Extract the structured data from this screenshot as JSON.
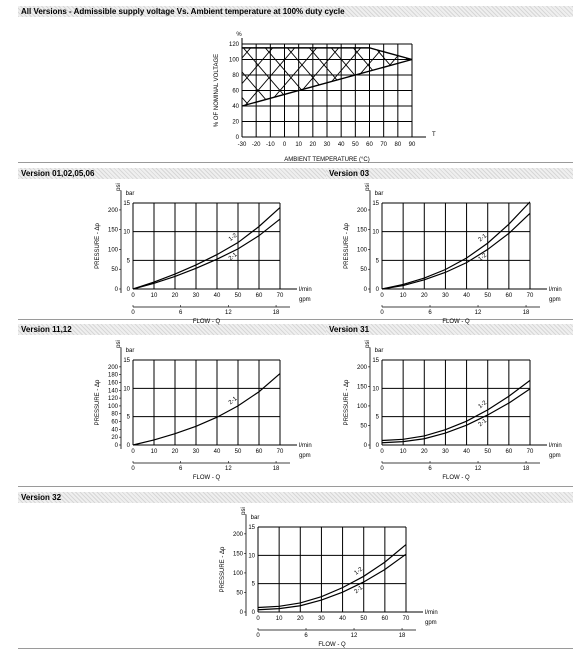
{
  "sections": {
    "top": "All Versions - Admissible supply voltage Vs. Ambient temperature at 100% duty cycle",
    "v01": "Version 01,02,05,06",
    "v03": "Version 03",
    "v11": "Version 11,12",
    "v31": "Version 31",
    "v32": "Version 32"
  },
  "chart_data": [
    {
      "id": "voltage_temp",
      "type": "area",
      "title": "",
      "xlabel": "AMBIENT TEMPERATURE (°C)",
      "ylabel": "% OF NOMINAL VOLTAGE",
      "y_unit": "%",
      "x_axis_symbol": "T",
      "xlim": [
        -30,
        90
      ],
      "ylim": [
        0,
        120
      ],
      "x_ticks": [
        "-30",
        "-20",
        "-10",
        "0",
        "10",
        "20",
        "30",
        "40",
        "50",
        "60",
        "70",
        "80",
        "90"
      ],
      "y_ticks": [
        "0",
        "20",
        "40",
        "60",
        "80",
        "100",
        "120"
      ],
      "series": [
        {
          "role": "upper limit",
          "x": [
            -30,
            60,
            90
          ],
          "y": [
            115,
            115,
            100
          ]
        },
        {
          "role": "lower limit",
          "x": [
            -30,
            90
          ],
          "y": [
            40,
            100
          ]
        }
      ]
    },
    {
      "id": "v01",
      "type": "line",
      "ylabel": "PRESSURE - Δp",
      "xlabel": "FLOW - Q",
      "y_unit_primary": "bar",
      "y_unit_secondary": "psi",
      "x_unit_primary": "l/min",
      "x_unit_secondary": "gpm",
      "xlim": [
        0,
        70
      ],
      "ylim": [
        0,
        15
      ],
      "x_ticks": [
        "0",
        "10",
        "20",
        "30",
        "40",
        "50",
        "60",
        "70"
      ],
      "y_ticks": [
        "0",
        "5",
        "10",
        "15"
      ],
      "psi_ticks": [
        "0",
        "50",
        "100",
        "150",
        "200"
      ],
      "gpm_ticks": [
        "0",
        "6",
        "12",
        "18"
      ],
      "series": [
        {
          "name": "1-2",
          "x": [
            0,
            10,
            20,
            30,
            40,
            50,
            60,
            70
          ],
          "y": [
            0,
            1.2,
            2.6,
            4.2,
            6.0,
            8.1,
            10.9,
            14.2
          ]
        },
        {
          "name": "2-1",
          "x": [
            0,
            10,
            20,
            30,
            40,
            50,
            60,
            70
          ],
          "y": [
            0,
            1.0,
            2.2,
            3.6,
            5.2,
            7.0,
            9.3,
            12.2
          ]
        }
      ]
    },
    {
      "id": "v03",
      "type": "line",
      "ylabel": "PRESSURE - Δp",
      "xlabel": "FLOW - Q",
      "y_unit_primary": "bar",
      "y_unit_secondary": "psi",
      "x_unit_primary": "l/min",
      "x_unit_secondary": "gpm",
      "xlim": [
        0,
        70
      ],
      "ylim": [
        0,
        15
      ],
      "x_ticks": [
        "0",
        "10",
        "20",
        "30",
        "40",
        "50",
        "60",
        "70"
      ],
      "y_ticks": [
        "0",
        "5",
        "10",
        "15"
      ],
      "psi_ticks": [
        "0",
        "50",
        "100",
        "150",
        "200"
      ],
      "gpm_ticks": [
        "0",
        "6",
        "12",
        "18"
      ],
      "series": [
        {
          "name": "2-1",
          "x": [
            0,
            10,
            20,
            30,
            40,
            50,
            60,
            70
          ],
          "y": [
            0,
            0.8,
            1.9,
            3.4,
            5.4,
            8.0,
            11.3,
            15.2
          ]
        },
        {
          "name": "1-2",
          "x": [
            0,
            10,
            20,
            30,
            40,
            50,
            60,
            70
          ],
          "y": [
            0,
            0.6,
            1.6,
            2.9,
            4.6,
            6.9,
            9.7,
            13.2
          ]
        }
      ]
    },
    {
      "id": "v11",
      "type": "line",
      "ylabel": "PRESSURE - Δp",
      "xlabel": "FLOW - Q",
      "y_unit_primary": "bar",
      "y_unit_secondary": "psi",
      "x_unit_primary": "l/min",
      "x_unit_secondary": "gpm",
      "xlim": [
        0,
        70
      ],
      "ylim": [
        0,
        15
      ],
      "x_ticks": [
        "0",
        "10",
        "20",
        "30",
        "40",
        "50",
        "60",
        "70"
      ],
      "y_ticks": [
        "0",
        "5",
        "10",
        "15"
      ],
      "psi_ticks": [
        "0",
        "20",
        "40",
        "60",
        "80",
        "100",
        "120",
        "140",
        "160",
        "180",
        "200"
      ],
      "gpm_ticks": [
        "0",
        "6",
        "12",
        "18"
      ],
      "series": [
        {
          "name": "2-1",
          "x": [
            0,
            10,
            20,
            30,
            40,
            50,
            60,
            70
          ],
          "y": [
            0,
            0.9,
            2.0,
            3.3,
            4.9,
            6.9,
            9.4,
            12.6
          ]
        }
      ]
    },
    {
      "id": "v31",
      "type": "line",
      "ylabel": "PRESSURE - Δp",
      "xlabel": "FLOW - Q",
      "y_unit_primary": "bar",
      "y_unit_secondary": "psi",
      "x_unit_primary": "l/min",
      "x_unit_secondary": "gpm",
      "xlim": [
        0,
        70
      ],
      "ylim": [
        0,
        15
      ],
      "x_ticks": [
        "0",
        "10",
        "20",
        "30",
        "40",
        "50",
        "60",
        "70"
      ],
      "y_ticks": [
        "0",
        "5",
        "10",
        "15"
      ],
      "psi_ticks": [
        "0",
        "50",
        "100",
        "150",
        "200"
      ],
      "gpm_ticks": [
        "0",
        "6",
        "12",
        "18"
      ],
      "series": [
        {
          "name": "1-2",
          "x": [
            0,
            10,
            20,
            30,
            40,
            50,
            60,
            70
          ],
          "y": [
            0.8,
            1.0,
            1.6,
            2.7,
            4.2,
            6.2,
            8.6,
            11.4
          ]
        },
        {
          "name": "2-1",
          "x": [
            0,
            10,
            20,
            30,
            40,
            50,
            60,
            70
          ],
          "y": [
            0.4,
            0.6,
            1.1,
            2.1,
            3.5,
            5.3,
            7.4,
            9.9
          ]
        }
      ]
    },
    {
      "id": "v32",
      "type": "line",
      "ylabel": "PRESSURE - Δp",
      "xlabel": "FLOW - Q",
      "y_unit_primary": "bar",
      "y_unit_secondary": "psi",
      "x_unit_primary": "l/min",
      "x_unit_secondary": "gpm",
      "xlim": [
        0,
        70
      ],
      "ylim": [
        0,
        15
      ],
      "x_ticks": [
        "0",
        "10",
        "20",
        "30",
        "40",
        "50",
        "60",
        "70"
      ],
      "y_ticks": [
        "0",
        "5",
        "10",
        "15"
      ],
      "psi_ticks": [
        "0",
        "50",
        "100",
        "150",
        "200"
      ],
      "gpm_ticks": [
        "0",
        "6",
        "12",
        "18"
      ],
      "series": [
        {
          "name": "1-2",
          "x": [
            0,
            10,
            20,
            30,
            40,
            50,
            60,
            70
          ],
          "y": [
            0.8,
            1.0,
            1.6,
            2.7,
            4.3,
            6.3,
            8.8,
            11.9
          ]
        },
        {
          "name": "2-1",
          "x": [
            0,
            10,
            20,
            30,
            40,
            50,
            60,
            70
          ],
          "y": [
            0.4,
            0.6,
            1.1,
            2.1,
            3.5,
            5.3,
            7.5,
            10.2
          ]
        }
      ]
    }
  ]
}
